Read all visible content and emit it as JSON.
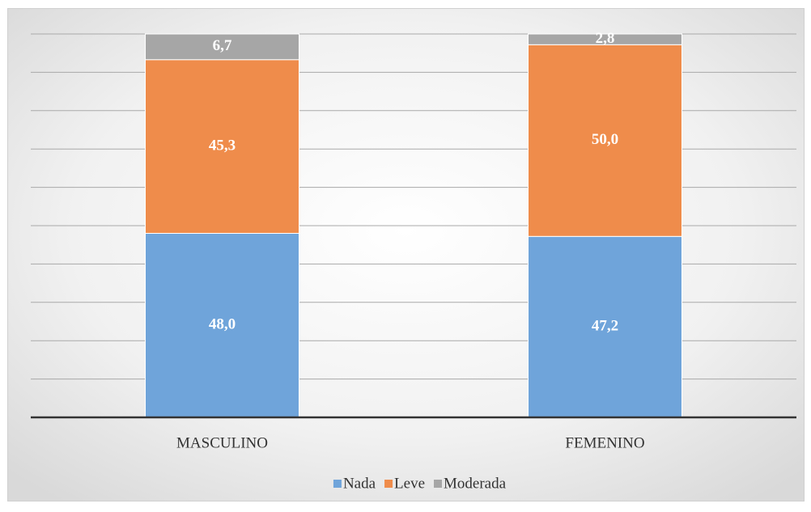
{
  "chart_data": {
    "type": "stacked_bar",
    "categories": [
      "MASCULINO",
      "FEMENINO"
    ],
    "series": [
      {
        "name": "Nada",
        "color": "#6fa4da",
        "values": [
          48.0,
          47.2
        ],
        "value_labels": [
          "48,0",
          "47,2"
        ]
      },
      {
        "name": "Leve",
        "color": "#ef8c4b",
        "values": [
          45.3,
          50.0
        ],
        "value_labels": [
          "45,3",
          "50,0"
        ]
      },
      {
        "name": "Moderada",
        "color": "#a6a6a6",
        "values": [
          6.7,
          2.8
        ],
        "value_labels": [
          "6,7",
          "2,8"
        ]
      }
    ],
    "ylim": [
      0,
      100
    ],
    "yticks": [
      0,
      10,
      20,
      30,
      40,
      50,
      60,
      70,
      80,
      90,
      100
    ],
    "grid": true,
    "legend": "bottom"
  }
}
